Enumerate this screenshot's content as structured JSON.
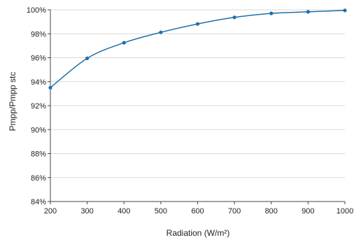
{
  "chart_data": {
    "type": "line",
    "title": "",
    "xlabel": "Radiation (W/m²)",
    "ylabel": "Pmpp/Pmpp stc",
    "x": [
      200,
      300,
      400,
      500,
      600,
      700,
      800,
      900,
      1000
    ],
    "series": [
      {
        "values": [
          0.935,
          0.9595,
          0.9725,
          0.9812,
          0.9882,
          0.9937,
          0.997,
          0.9983,
          0.9995
        ]
      }
    ],
    "xlim": [
      200,
      1000
    ],
    "ylim": [
      0.84,
      1.0
    ],
    "x_ticks": [
      200,
      300,
      400,
      500,
      600,
      700,
      800,
      900,
      1000
    ],
    "x_tick_labels": [
      "200",
      "300",
      "400",
      "500",
      "600",
      "700",
      "800",
      "900",
      "1000"
    ],
    "y_ticks": [
      0.84,
      0.86,
      0.88,
      0.9,
      0.92,
      0.94,
      0.96,
      0.98,
      1.0
    ],
    "y_tick_labels": [
      "84%",
      "86%",
      "88%",
      "90%",
      "92%",
      "94%",
      "96%",
      "98%",
      "100%"
    ],
    "grid": true,
    "legend": "none",
    "colors": {
      "series": "#1f6fa8",
      "grid": "#d9d9d9",
      "axis": "#444444",
      "text": "#222222"
    }
  }
}
